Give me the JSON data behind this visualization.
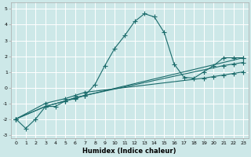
{
  "xlabel": "Humidex (Indice chaleur)",
  "bg_color": "#cde8e8",
  "grid_color": "#ffffff",
  "line_color": "#1a6b6b",
  "xlim": [
    -0.5,
    23.5
  ],
  "ylim": [
    -3.2,
    5.4
  ],
  "xticks": [
    0,
    1,
    2,
    3,
    4,
    5,
    6,
    7,
    8,
    9,
    10,
    11,
    12,
    13,
    14,
    15,
    16,
    17,
    18,
    19,
    20,
    21,
    22,
    23
  ],
  "yticks": [
    -3,
    -2,
    -1,
    0,
    1,
    2,
    3,
    4,
    5
  ],
  "curve1_x": [
    0,
    1,
    2,
    3,
    4,
    5,
    6,
    7,
    8,
    9,
    10,
    11,
    12,
    13,
    14,
    15,
    16,
    17,
    18,
    19,
    20,
    21,
    22,
    23
  ],
  "curve1_y": [
    -2.0,
    -2.6,
    -2.0,
    -1.2,
    -1.2,
    -0.85,
    -0.7,
    -0.5,
    0.2,
    1.4,
    2.5,
    3.3,
    4.2,
    4.7,
    4.5,
    3.5,
    1.5,
    0.65,
    0.6,
    1.0,
    1.4,
    1.9,
    1.9,
    1.9
  ],
  "line2_x": [
    0,
    3,
    5,
    6,
    7,
    23
  ],
  "line2_y": [
    -2.0,
    -1.2,
    -0.85,
    -0.65,
    -0.5,
    1.9
  ],
  "line3_x": [
    0,
    3,
    5,
    6,
    7,
    21,
    22,
    23
  ],
  "line3_y": [
    -2.0,
    -1.2,
    -0.85,
    -0.65,
    -0.5,
    1.4,
    1.5,
    1.6
  ],
  "line4_x": [
    0,
    3,
    5,
    6,
    7,
    19,
    20,
    21,
    22,
    23
  ],
  "line4_y": [
    -2.0,
    -1.0,
    -0.7,
    -0.5,
    -0.3,
    0.6,
    0.7,
    0.8,
    0.9,
    1.0
  ],
  "markersize": 2.5
}
